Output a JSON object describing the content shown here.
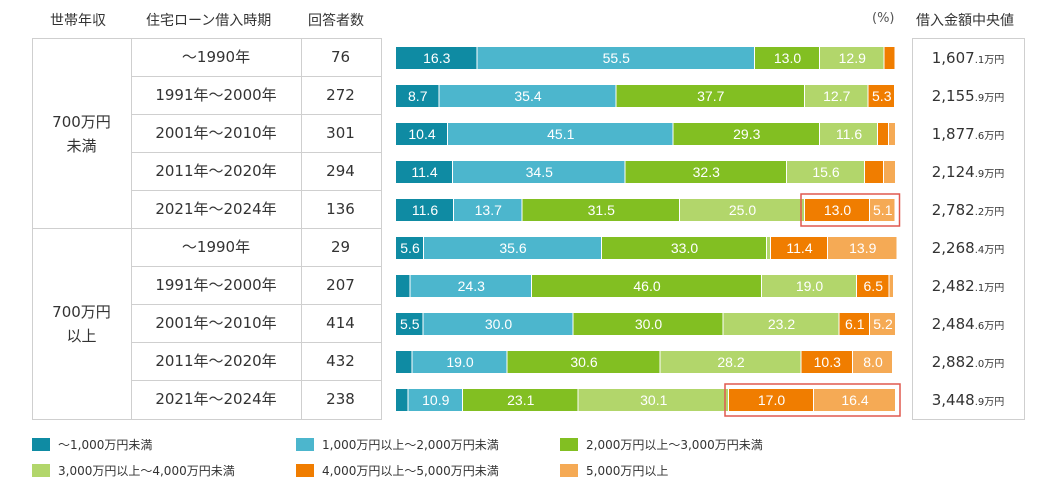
{
  "headers": {
    "income": "世帯年収",
    "period": "住宅ローン借入時期",
    "count": "回答者数",
    "unit": "(%)",
    "median": "借入金額中央値"
  },
  "groups": [
    {
      "label_line1": "700万円",
      "label_line2": "未満"
    },
    {
      "label_line1": "700万円",
      "label_line2": "以上"
    }
  ],
  "rows": [
    {
      "period": "〜1990年",
      "count": "76",
      "median_main": "1,607",
      "median_sub": ".1万円"
    },
    {
      "period": "1991年〜2000年",
      "count": "272",
      "median_main": "2,155",
      "median_sub": ".9万円"
    },
    {
      "period": "2001年〜2010年",
      "count": "301",
      "median_main": "1,877",
      "median_sub": ".6万円"
    },
    {
      "period": "2011年〜2020年",
      "count": "294",
      "median_main": "2,124",
      "median_sub": ".9万円"
    },
    {
      "period": "2021年〜2024年",
      "count": "136",
      "median_main": "2,782",
      "median_sub": ".2万円"
    },
    {
      "period": "〜1990年",
      "count": "29",
      "median_main": "2,268",
      "median_sub": ".4万円"
    },
    {
      "period": "1991年〜2000年",
      "count": "207",
      "median_main": "2,482",
      "median_sub": ".1万円"
    },
    {
      "period": "2001年〜2010年",
      "count": "414",
      "median_main": "2,484",
      "median_sub": ".6万円"
    },
    {
      "period": "2011年〜2020年",
      "count": "432",
      "median_main": "2,882",
      "median_sub": ".0万円"
    },
    {
      "period": "2021年〜2024年",
      "count": "238",
      "median_main": "3,448",
      "median_sub": ".9万円"
    }
  ],
  "legend": [
    "〜1,000万円未満",
    "1,000万円以上〜2,000万円未満",
    "2,000万円以上〜3,000万円未満",
    "3,000万円以上〜4,000万円未満",
    "4,000万円以上〜5,000万円未満",
    "5,000万円以上"
  ],
  "colors": [
    "#0f8ba3",
    "#4cb6cd",
    "#82bf22",
    "#b2d66b",
    "#f07d00",
    "#f5aa55"
  ],
  "highlight_color": "#e0584f",
  "chart_data": {
    "type": "bar",
    "orientation": "horizontal",
    "stacked": true,
    "xlim": [
      0,
      100
    ],
    "categories": [
      "700万円未満 〜1990年",
      "700万円未満 1991年〜2000年",
      "700万円未満 2001年〜2010年",
      "700万円未満 2011年〜2020年",
      "700万円未満 2021年〜2024年",
      "700万円以上 〜1990年",
      "700万円以上 1991年〜2000年",
      "700万円以上 2001年〜2010年",
      "700万円以上 2011年〜2020年",
      "700万円以上 2021年〜2024年"
    ],
    "series": [
      {
        "name": "〜1,000万円未満",
        "values": [
          16.3,
          8.7,
          10.4,
          11.4,
          11.6,
          5.6,
          2.9,
          5.5,
          3.3,
          2.5
        ]
      },
      {
        "name": "1,000万円以上〜2,000万円未満",
        "values": [
          55.5,
          35.4,
          45.1,
          34.5,
          13.7,
          35.6,
          24.3,
          30.0,
          19.0,
          10.9
        ]
      },
      {
        "name": "2,000万円以上〜3,000万円未満",
        "values": [
          13.0,
          37.7,
          29.3,
          32.3,
          31.5,
          33.0,
          46.0,
          30.0,
          30.6,
          23.1
        ]
      },
      {
        "name": "3,000万円以上〜4,000万円未満",
        "values": [
          12.9,
          12.7,
          11.6,
          15.6,
          25.0,
          0.8,
          19.0,
          23.2,
          28.2,
          30.1
        ]
      },
      {
        "name": "4,000万円以上〜5,000万円未満",
        "values": [
          2.2,
          5.3,
          2.2,
          3.8,
          13.0,
          11.4,
          6.5,
          6.1,
          10.3,
          17.0
        ]
      },
      {
        "name": "5,000万円以上",
        "values": [
          0.0,
          0.0,
          1.4,
          2.4,
          5.1,
          13.9,
          0.9,
          5.2,
          8.0,
          16.4
        ]
      }
    ],
    "value_labels": [
      [
        "16.3",
        "55.5",
        "13.0",
        "12.9",
        "",
        ""
      ],
      [
        "8.7",
        "35.4",
        "37.7",
        "12.7",
        "5.3",
        ""
      ],
      [
        "10.4",
        "45.1",
        "29.3",
        "11.6",
        "",
        ""
      ],
      [
        "11.4",
        "34.5",
        "32.3",
        "15.6",
        "",
        ""
      ],
      [
        "11.6",
        "13.7",
        "31.5",
        "25.0",
        "13.0",
        "5.1"
      ],
      [
        "5.6",
        "35.6",
        "33.0",
        "",
        "11.4",
        "13.9"
      ],
      [
        "",
        "24.3",
        "46.0",
        "19.0",
        "6.5",
        ""
      ],
      [
        "5.5",
        "30.0",
        "30.0",
        "23.2",
        "6.1",
        "5.2"
      ],
      [
        "",
        "19.0",
        "30.6",
        "28.2",
        "10.3",
        "8.0"
      ],
      [
        "",
        "10.9",
        "23.1",
        "30.1",
        "17.0",
        "16.4"
      ]
    ],
    "highlighted": [
      {
        "row": 4,
        "series": [
          4,
          5
        ]
      },
      {
        "row": 9,
        "series": [
          4,
          5
        ]
      }
    ]
  }
}
